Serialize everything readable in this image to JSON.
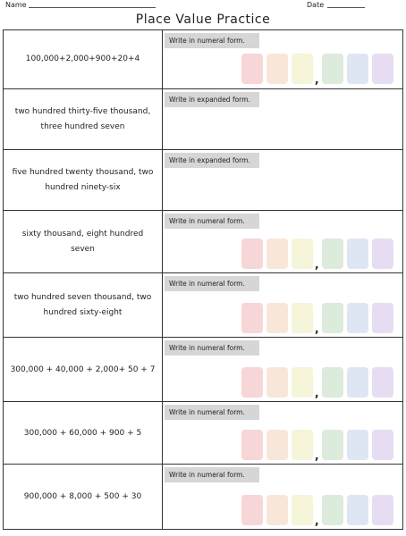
{
  "header": {
    "name_label": "Name",
    "date_label": "Date",
    "title": "Place Value Practice"
  },
  "digit_separator": ",",
  "rows": [
    {
      "problem": "100,000+2,000+900+20+4",
      "instruction": "Write in numeral form."
    },
    {
      "problem": "two hundred thirty-five thousand, three hundred seven",
      "instruction": "Write in expanded form."
    },
    {
      "problem": "five hundred twenty thousand, two hundred ninety-six",
      "instruction": "Write in expanded form."
    },
    {
      "problem": "sixty thousand, eight hundred seven",
      "instruction": "Write in numeral form."
    },
    {
      "problem": "two hundred seven thousand, two hundred sixty-eight",
      "instruction": "Write in numeral form."
    },
    {
      "problem": "300,000 + 40,000 + 2,000+ 50 + 7",
      "instruction": "Write in numeral form."
    },
    {
      "problem": "300,000 + 60,000 + 900 + 5",
      "instruction": "Write in numeral form."
    },
    {
      "problem": "900,000 + 8,000 + 500 + 30",
      "instruction": "Write in numeral form."
    }
  ]
}
